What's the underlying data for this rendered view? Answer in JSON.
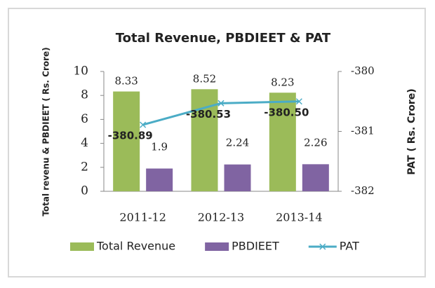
{
  "chart_data": {
    "type": "bar",
    "title": "Total Revenue, PBDIEET & PAT",
    "categories": [
      "2011-12",
      "2012-13",
      "2013-14"
    ],
    "series": [
      {
        "name": "Total Revenue",
        "type": "bar",
        "color": "#9bbb59",
        "values": [
          8.33,
          8.52,
          8.23
        ]
      },
      {
        "name": "PBDIEET",
        "type": "bar",
        "color": "#8064a2",
        "values": [
          1.9,
          2.24,
          2.26
        ]
      },
      {
        "name": "PAT",
        "type": "line",
        "axis": "y2",
        "color": "#4bacc6",
        "values": [
          -380.89,
          -380.53,
          -380.5
        ],
        "value_labels": [
          "-380.89",
          "-380.53",
          "-380.50"
        ]
      }
    ],
    "y_label": "Total revenu & PBDIEET ( Rs. Crore)",
    "y2_label": "PAT ( Rs. Crore)",
    "ylim": [
      0,
      10
    ],
    "yticks": [
      0,
      2,
      4,
      6,
      8,
      10
    ],
    "y2lim": [
      -382,
      -380
    ],
    "y2ticks": [
      -382,
      -381,
      -380
    ],
    "legend": "bottom"
  }
}
